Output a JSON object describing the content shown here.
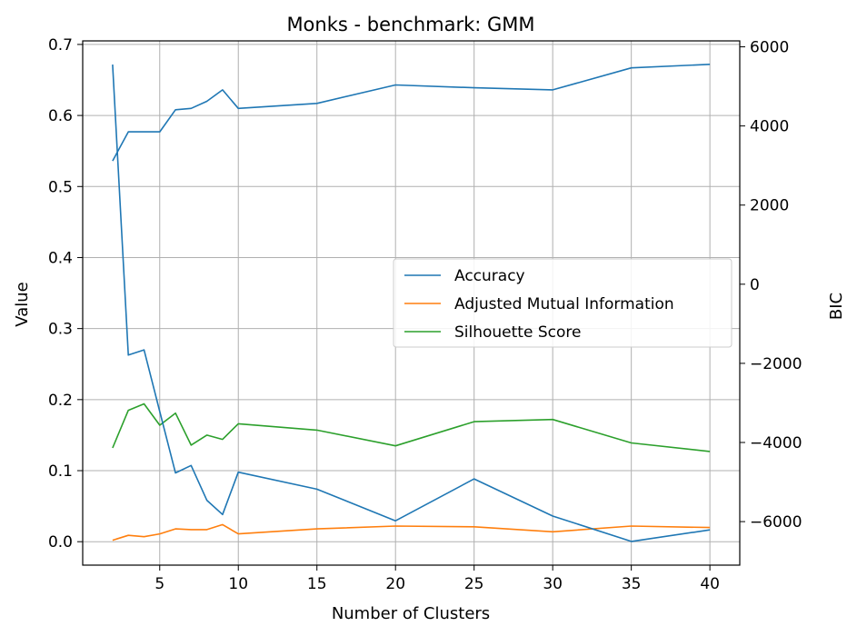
{
  "chart_data": {
    "type": "line",
    "title": "Monks - benchmark: GMM",
    "xlabel": "Number of Clusters",
    "ylabel": "Value",
    "y2label": "BIC",
    "x": [
      2,
      3,
      4,
      5,
      6,
      7,
      8,
      9,
      10,
      15,
      20,
      25,
      30,
      35,
      40
    ],
    "xlim": [
      0.1,
      41.9
    ],
    "ylim": [
      -0.033,
      0.705
    ],
    "y2lim": [
      -7100,
      6150
    ],
    "xticks": [
      5,
      10,
      15,
      20,
      25,
      30,
      35,
      40
    ],
    "yticks": [
      0.0,
      0.1,
      0.2,
      0.3,
      0.4,
      0.5,
      0.6,
      0.7
    ],
    "ytick_labels": [
      "0.0",
      "0.1",
      "0.2",
      "0.3",
      "0.4",
      "0.5",
      "0.6",
      "0.7"
    ],
    "y2ticks": [
      -6000,
      -4000,
      -2000,
      0,
      2000,
      4000,
      6000
    ],
    "y2tick_labels": [
      "−6000",
      "−4000",
      "−2000",
      "0",
      "2000",
      "4000",
      "6000"
    ],
    "grid": true,
    "legend_position": "center-right",
    "series": [
      {
        "name": "Accuracy",
        "axis": "left",
        "color": "#1f77b4",
        "values": [
          0.536,
          0.577,
          0.577,
          0.577,
          0.608,
          0.61,
          0.62,
          0.636,
          0.61,
          0.617,
          0.643,
          0.639,
          0.636,
          0.667,
          0.672
        ]
      },
      {
        "name": "Adjusted Mutual Information",
        "axis": "left",
        "color": "#ff7f0e",
        "values": [
          0.002,
          0.009,
          0.007,
          0.011,
          0.018,
          0.017,
          0.017,
          0.024,
          0.011,
          0.018,
          0.022,
          0.021,
          0.014,
          0.022,
          0.02
        ]
      },
      {
        "name": "Silhouette Score",
        "axis": "left",
        "color": "#2ca02c",
        "values": [
          0.132,
          0.185,
          0.194,
          0.164,
          0.181,
          0.136,
          0.15,
          0.144,
          0.166,
          0.157,
          0.135,
          0.169,
          0.172,
          0.139,
          0.127
        ]
      },
      {
        "name": "",
        "axis": "right",
        "color": "#1f77b4",
        "values": [
          5550,
          -1790,
          -1660,
          -3220,
          -4770,
          -4580,
          -5460,
          -5820,
          -4750,
          -5180,
          -5980,
          -4920,
          -5860,
          -6500,
          -6210
        ]
      }
    ]
  }
}
